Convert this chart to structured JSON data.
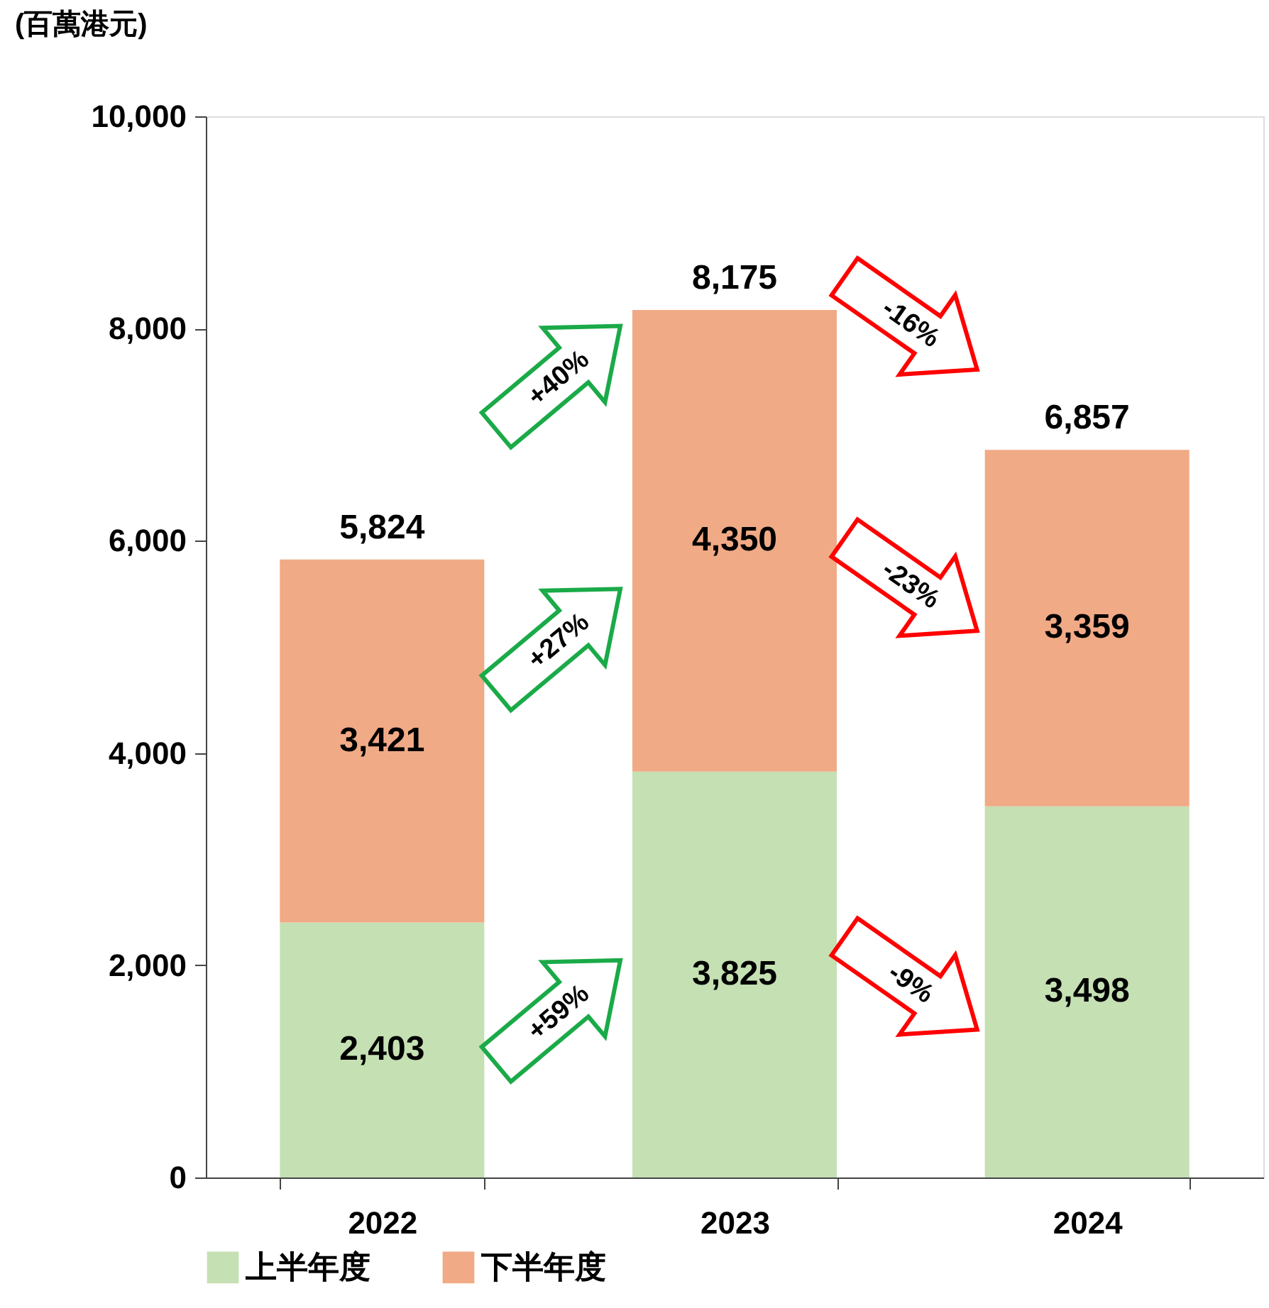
{
  "chart_data": {
    "type": "bar",
    "stacked": true,
    "ylabel": "(百萬港元)",
    "categories": [
      "2022",
      "2023",
      "2024"
    ],
    "series": [
      {
        "name": "上半年度",
        "color": "#c5e0b3",
        "values": [
          2403,
          3825,
          3498
        ],
        "value_labels": [
          "2,403",
          "3,825",
          "3,498"
        ]
      },
      {
        "name": "下半年度",
        "color": "#f1aa86",
        "values": [
          3421,
          4350,
          3359
        ],
        "value_labels": [
          "3,421",
          "4,350",
          "3,359"
        ]
      }
    ],
    "ylim": [
      0,
      10000
    ],
    "yticks": [
      0,
      {
        "value": 2000,
        "label": "2,000"
      },
      {
        "value": 4000,
        "label": "4,000"
      },
      {
        "value": 6000,
        "label": "6,000"
      },
      {
        "value": 8000,
        "label": "8,000"
      },
      {
        "value": 10000,
        "label": "10,000"
      }
    ],
    "totals": [
      "5,824",
      "8,175",
      "6,857"
    ],
    "legend": "bottom",
    "grid": false,
    "annotations": [
      "+40%",
      "+27%",
      "+59%",
      "-16%",
      "-23%",
      "-9%"
    ]
  }
}
